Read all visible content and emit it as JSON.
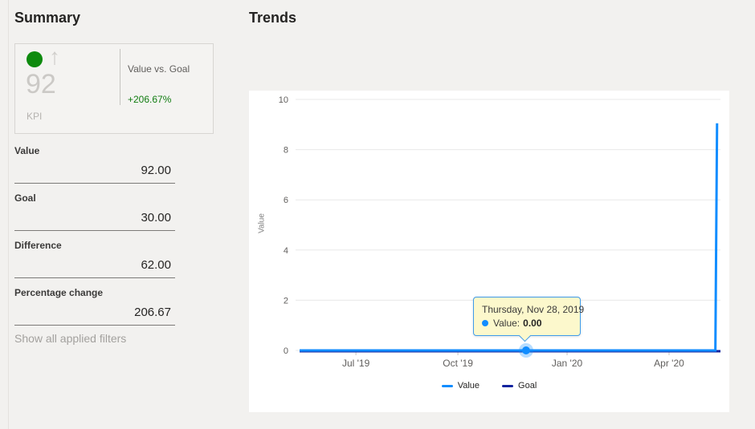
{
  "summary": {
    "title": "Summary",
    "kpi": {
      "value": "92",
      "label": "KPI",
      "trend_icon": "up-arrow",
      "trend_glyph": "↑",
      "status_color": "#0e8a0e",
      "comparison_label": "Value vs. Goal",
      "delta": "+206.67%",
      "delta_color": "#107c10"
    },
    "fields": [
      {
        "label": "Value",
        "value": "92.00"
      },
      {
        "label": "Goal",
        "value": "30.00"
      },
      {
        "label": "Difference",
        "value": "62.00"
      },
      {
        "label": "Percentage change",
        "value": "206.67"
      }
    ],
    "filters_link": "Show all applied filters"
  },
  "trends": {
    "title": "Trends"
  },
  "chart_data": {
    "type": "line",
    "title": "",
    "xlabel": "",
    "ylabel": "Value",
    "ylim": [
      0,
      10
    ],
    "yticks": [
      0,
      2,
      4,
      6,
      8,
      10
    ],
    "grid": true,
    "legend_position": "bottom-center",
    "xticks": [
      {
        "label": "Jul '19",
        "f": 0.142
      },
      {
        "label": "Oct '19",
        "f": 0.382
      },
      {
        "label": "Jan '20",
        "f": 0.639
      },
      {
        "label": "Apr '20",
        "f": 0.879
      }
    ],
    "series": [
      {
        "name": "Goal",
        "color": "#12239E",
        "width": 3,
        "dy": 1,
        "points": [
          [
            0.0095,
            0
          ],
          [
            1.0,
            0
          ]
        ]
      },
      {
        "name": "Value",
        "color": "#118DFF",
        "width": 3,
        "dy": 0,
        "points": [
          [
            0.0095,
            0
          ],
          [
            0.988,
            0
          ],
          [
            0.992,
            9.05
          ]
        ]
      }
    ],
    "highlight": {
      "f": 0.5425,
      "value": 0,
      "color": "#118DFF",
      "halo": "rgba(17,141,255,0.3)"
    },
    "tooltip": {
      "date": "Thursday, Nov 28, 2019",
      "series_label": "Value:",
      "value": "0.00"
    }
  }
}
